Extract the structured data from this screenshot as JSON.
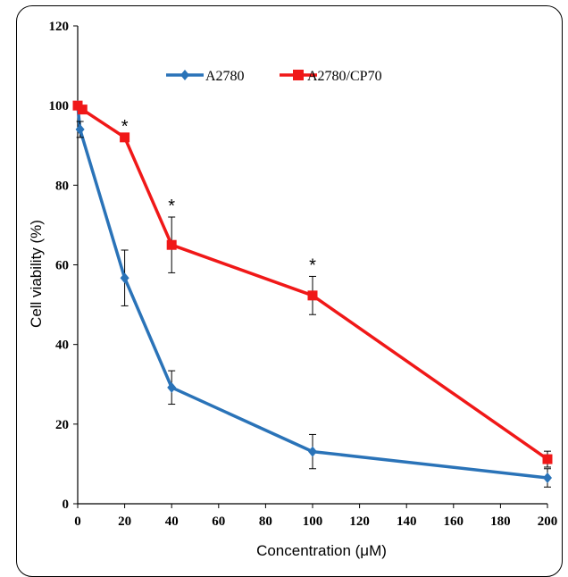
{
  "chart_data": {
    "type": "line",
    "xlabel": "Concentration (μM)",
    "ylabel": "Cell viability (%)",
    "xlim": [
      0,
      200
    ],
    "ylim": [
      0,
      120
    ],
    "xticks": [
      0,
      20,
      40,
      60,
      80,
      100,
      120,
      140,
      160,
      180,
      200
    ],
    "yticks": [
      0,
      20,
      40,
      60,
      80,
      100,
      120
    ],
    "grid": false,
    "legend_position": "top",
    "series": [
      {
        "name": "A2780",
        "color": "#2a73b8",
        "marker": "diamond",
        "x": [
          0,
          1,
          20,
          40,
          100,
          200
        ],
        "y": [
          100,
          94,
          56.7,
          29.2,
          13.1,
          6.5
        ],
        "err": [
          0,
          2,
          7,
          4.2,
          4.3,
          2.3
        ]
      },
      {
        "name": "A2780/CP70",
        "color": "#f01818",
        "marker": "square",
        "x": [
          0,
          2,
          20,
          40,
          100,
          200
        ],
        "y": [
          100,
          99,
          92,
          65,
          52.3,
          11.2
        ],
        "err": [
          0,
          0,
          0,
          7,
          4.8,
          2
        ]
      }
    ],
    "annotations": [
      {
        "text": "*",
        "x": 20,
        "y": 92
      },
      {
        "text": "*",
        "x": 40,
        "y": 72
      },
      {
        "text": "*",
        "x": 100,
        "y": 57.1
      }
    ]
  }
}
